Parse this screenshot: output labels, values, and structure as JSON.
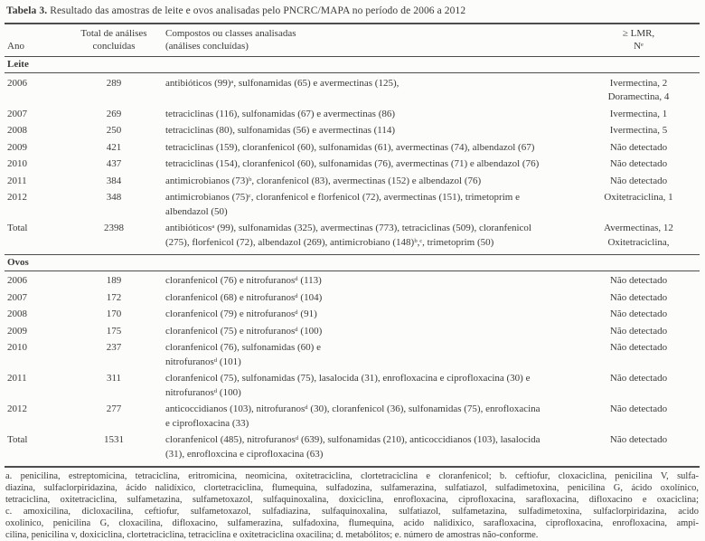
{
  "title": {
    "label": "Tabela 3.",
    "text": "Resultado das amostras de leite e ovos analisadas pelo PNCRC/MAPA no período de 2006 a 2012"
  },
  "columns": {
    "ano": "Ano",
    "total_line1": "Total de análises",
    "total_line2": "concluídas",
    "compostos_line1": "Compostos ou classes analisadas",
    "compostos_line2": "(análises concluídas)",
    "lmr_line1": "≥ LMR,",
    "lmr_line2": "Nᵉ"
  },
  "sections": [
    {
      "name": "Leite",
      "rows": [
        {
          "ano": "2006",
          "total": "289",
          "compostos": "antibióticos (99)ᵃ, sulfonamidas (65) e avermectinas (125),",
          "lmr": "Ivermectina, 2\nDoramectina, 4"
        },
        {
          "ano": "2007",
          "total": "269",
          "compostos": "tetraciclinas (116), sulfonamidas (67) e avermectinas (86)",
          "lmr": "Ivermectina, 1"
        },
        {
          "ano": "2008",
          "total": "250",
          "compostos": "tetraciclinas (80), sulfonamidas (56) e avermectinas (114)",
          "lmr": "Ivermectina, 5"
        },
        {
          "ano": "2009",
          "total": "421",
          "compostos": "tetraciclinas (159), cloranfenicol (60), sulfonamidas (61), avermectinas (74), albendazol (67)",
          "lmr": "Não detectado"
        },
        {
          "ano": "2010",
          "total": "437",
          "compostos": "tetraciclinas (154), cloranfenicol (60), sulfonamidas (76), avermectinas (71) e albendazol (76)",
          "lmr": "Não detectado"
        },
        {
          "ano": "2011",
          "total": "384",
          "compostos": "antimicrobianos (73)ᵇ, cloranfenicol (83), avermectinas (152) e albendazol (76)",
          "lmr": "Não detectado"
        },
        {
          "ano": "2012",
          "total": "348",
          "compostos": "antimicrobianos (75)ᶜ, cloranfenicol e florfenicol (72), avermectinas (151), trimetoprim e\nalbendazol (50)",
          "lmr": "Oxitetraciclina, 1"
        },
        {
          "ano": "Total",
          "total": "2398",
          "compostos": "antibióticosᵃ (99), sulfonamidas (325), avermectinas (773), tetraciclinas (509), cloranfenicol\n(275), florfenicol (72), albendazol (269), antimicrobiano (148)ᵇ,ᶜ, trimetoprim (50)",
          "lmr": "Avermectinas, 12\nOxitetraciclina,"
        }
      ]
    },
    {
      "name": "Ovos",
      "rows": [
        {
          "ano": "2006",
          "total": "189",
          "compostos": "cloranfenicol (76) e nitrofuranosᵈ (113)",
          "lmr": "Não detectado"
        },
        {
          "ano": "2007",
          "total": "172",
          "compostos": "cloranfenicol (68) e nitrofuranosᵈ (104)",
          "lmr": "Não detectado"
        },
        {
          "ano": "2008",
          "total": "170",
          "compostos": "cloranfenicol (79) e nitrofuranosᵈ (91)",
          "lmr": "Não detectado"
        },
        {
          "ano": "2009",
          "total": "175",
          "compostos": "cloranfenicol (75) e nitrofuranosᵈ (100)",
          "lmr": "Não detectado"
        },
        {
          "ano": "2010",
          "total": "237",
          "compostos": "cloranfenicol (76), sulfonamidas (60) e\nnitrofuranosᵈ (101)",
          "lmr": "Não detectado"
        },
        {
          "ano": "2011",
          "total": "311",
          "compostos": "cloranfenicol (75), sulfonamidas (75), lasalocida (31), enrofloxacina e ciprofloxacina (30) e\nnitrofuranosᵈ (100)",
          "lmr": "Não detectado"
        },
        {
          "ano": "2012",
          "total": "277",
          "compostos": "anticoccidianos (103), nitrofuranosᵈ (30), cloranfenicol (36), sulfonamidas (75), enrofloxacina\ne ciprofloxacina (33)",
          "lmr": "Não detectado"
        },
        {
          "ano": "Total",
          "total": "1531",
          "compostos": "cloranfenicol (485), nitrofuranosᵈ (639), sulfonamidas (210), anticoccidianos (103), lasalocida\n(31), enrofloxcina e ciprofloxacina (63)",
          "lmr": "Não detectado"
        }
      ]
    }
  ],
  "footnotes": {
    "lines": [
      "a. penicilina, estreptomicina, tetraciclina, eritromicina, neomicina, oxitetraciclina, clortetraciclina e cloranfenicol; b. ceftiofur, cloxaciclina, penicilina V, sulfa-",
      "diazina, sulfaclorpiridazina, ácido nalidíxico, clortetraciclina, flumequina, sulfadozina, sulfamerazina, sulfatiazol, sulfadimetoxina, penicilina G, ácido oxolínico,",
      "tetraciclina, oxitetraciclina, sulfametazina, sulfametoxazol, sulfaquinoxalina, doxiciclina, enrofloxacina, ciprofloxacina, sarafloxacina, difloxacino e oxaciclina;",
      "c. amoxicilina, dicloxacilina, ceftiofur, sulfametoxazol, sulfadiazina, sulfaquinoxalina, sulfatiazol, sulfametazina, sulfadimetoxina, sulfaclorpiridazina, acido",
      "oxolinico, penicilina G, cloxacilina, difloxacino, sulfamerazina, sulfadoxina, flumequina, acido nalidixico, sarafloxacina, ciprofloxacina, enrofloxacina, ampi-",
      "cilina, penicilina v, doxiciclina, clortetraciclina, tetraciclina e oxitetraciclina oxacilina; d. metabólitos; e. número de amostras não-conforme."
    ]
  }
}
